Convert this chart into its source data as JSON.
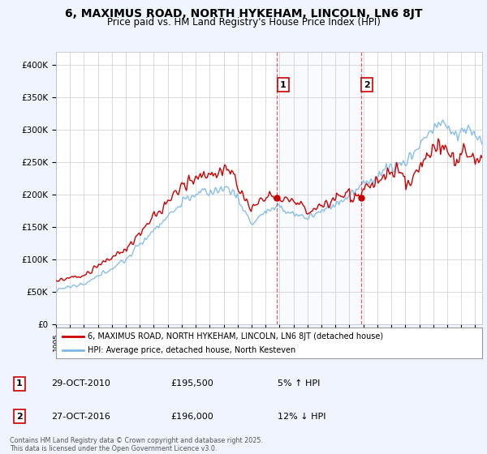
{
  "title": "6, MAXIMUS ROAD, NORTH HYKEHAM, LINCOLN, LN6 8JT",
  "subtitle": "Price paid vs. HM Land Registry's House Price Index (HPI)",
  "ylabel_ticks": [
    "£0",
    "£50K",
    "£100K",
    "£150K",
    "£200K",
    "£250K",
    "£300K",
    "£350K",
    "£400K"
  ],
  "ytick_values": [
    0,
    50000,
    100000,
    150000,
    200000,
    250000,
    300000,
    350000,
    400000
  ],
  "ylim": [
    0,
    420000
  ],
  "xlim_start": 1995.0,
  "xlim_end": 2025.5,
  "hpi_color": "#7ab8e8",
  "property_color": "#cc0000",
  "marker1_x": 2010.83,
  "marker1_y": 195500,
  "marker2_x": 2016.83,
  "marker2_y": 196000,
  "marker1_label": "1",
  "marker2_label": "2",
  "legend_property": "6, MAXIMUS ROAD, NORTH HYKEHAM, LINCOLN, LN6 8JT (detached house)",
  "legend_hpi": "HPI: Average price, detached house, North Kesteven",
  "transaction1_date": "29-OCT-2010",
  "transaction1_price": "£195,500",
  "transaction1_hpi": "5% ↑ HPI",
  "transaction2_date": "27-OCT-2016",
  "transaction2_price": "£196,000",
  "transaction2_hpi": "12% ↓ HPI",
  "footnote": "Contains HM Land Registry data © Crown copyright and database right 2025.\nThis data is licensed under the Open Government Licence v3.0.",
  "background_color": "#f0f4ff",
  "plot_bg_color": "#ffffff",
  "grid_color": "#cccccc",
  "title_fontsize": 10,
  "subtitle_fontsize": 8.5,
  "tick_fontsize": 7.5
}
